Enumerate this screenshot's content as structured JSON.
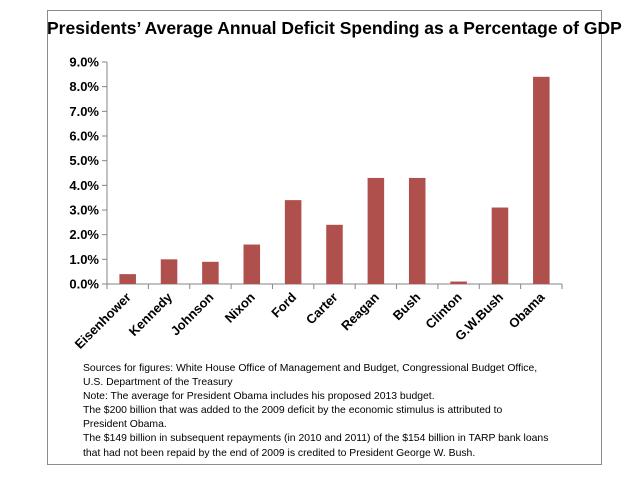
{
  "chart_data": {
    "type": "bar",
    "title": "Presidents’ Average Annual Deficit Spending as a Percentage of GDP",
    "categories": [
      "Eisenhower",
      "Kennedy",
      "Johnson",
      "Nixon",
      "Ford",
      "Carter",
      "Reagan",
      "Bush",
      "Clinton",
      "G.W.Bush",
      "Obama"
    ],
    "values": [
      0.4,
      1.0,
      0.9,
      1.6,
      3.4,
      2.4,
      4.3,
      4.3,
      0.1,
      3.1,
      8.4
    ],
    "ylim": [
      0,
      9
    ],
    "yticks": [
      "0.0%",
      "1.0%",
      "2.0%",
      "3.0%",
      "4.0%",
      "5.0%",
      "6.0%",
      "7.0%",
      "8.0%",
      "9.0%"
    ],
    "xlabel": "",
    "ylabel": "",
    "grid": false,
    "legend": "none",
    "bar_color": "#b0504c"
  },
  "notes": {
    "lines": [
      "Sources for figures: White House Office of Management and Budget, Congressional Budget Office,",
      "U.S. Department of the Treasury",
      "Note: The average for President Obama includes his proposed 2013 budget.",
      "The $200 billion that was added to the 2009 deficit by the economic stimulus is attributed to",
      "President Obama.",
      "The $149 billion in subsequent repayments (in 2010 and 2011) of the $154 billion in TARP bank loans",
      "that had not been repaid by the end of 2009 is credited to President George W. Bush."
    ]
  }
}
